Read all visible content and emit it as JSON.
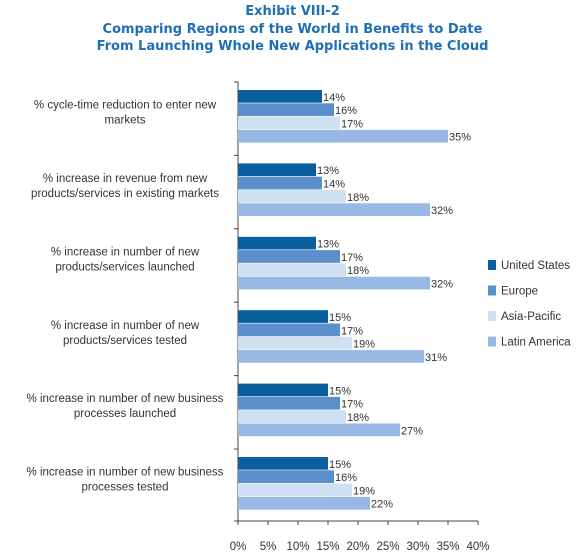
{
  "header": {
    "exhibit": "Exhibit VIII-2",
    "title_line1": "Comparing Regions of the World in Benefits to Date",
    "title_line2": "From Launching Whole New Applications in the Cloud"
  },
  "chart_data": {
    "type": "bar",
    "orientation": "horizontal",
    "categories": [
      [
        "% cycle-time reduction to enter new",
        "markets"
      ],
      [
        "% increase in revenue from new",
        "products/services in existing markets"
      ],
      [
        "% increase in number of new",
        "products/services launched"
      ],
      [
        "% increase in number of new",
        "products/services tested"
      ],
      [
        "% increase in number of new business",
        "processes launched"
      ],
      [
        "% increase in number of new business",
        "processes tested"
      ]
    ],
    "series": [
      {
        "name": "United States",
        "color": "#0b5f9e",
        "values": [
          14,
          13,
          13,
          15,
          15,
          15
        ]
      },
      {
        "name": "Europe",
        "color": "#5a8fcc",
        "values": [
          16,
          14,
          17,
          17,
          17,
          16
        ]
      },
      {
        "name": "Asia-Pacific",
        "color": "#cfe0f3",
        "values": [
          17,
          18,
          18,
          19,
          18,
          19
        ]
      },
      {
        "name": "Latin America",
        "color": "#97b9e3",
        "values": [
          35,
          32,
          32,
          31,
          27,
          22
        ]
      }
    ],
    "xlim": [
      0,
      40
    ],
    "xticks": [
      0,
      5,
      10,
      15,
      20,
      25,
      30,
      35,
      40
    ],
    "value_suffix": "%",
    "grid": false,
    "legend_position": "right"
  }
}
